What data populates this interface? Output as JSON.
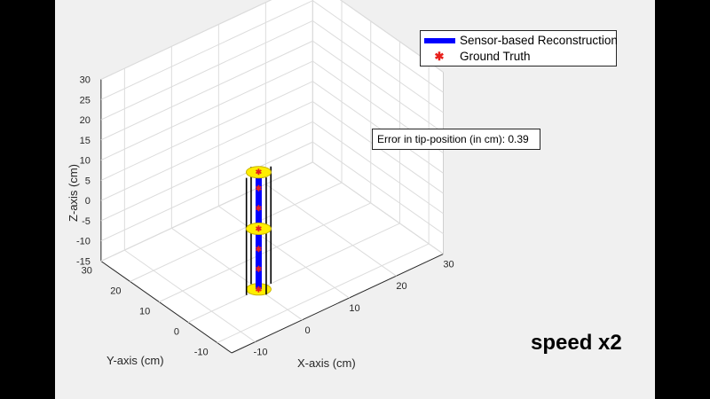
{
  "overlay": {
    "speed_label": "speed x2"
  },
  "legend": {
    "items": [
      {
        "label": "Sensor-based Reconstruction",
        "icon": "line-swatch",
        "color": "#0000ff"
      },
      {
        "label": "Ground Truth",
        "icon": "asterisk-marker",
        "color": "#e8201c"
      }
    ]
  },
  "annotation": {
    "text": "Error in tip-position (in cm): 0.39"
  },
  "chart_data": {
    "type": "line3d",
    "xlabel": "X-axis (cm)",
    "ylabel": "Y-axis (cm)",
    "zlabel": "Z-axis (cm)",
    "xlim": [
      -15,
      30
    ],
    "ylim": [
      -15,
      30
    ],
    "zlim": [
      -15,
      30
    ],
    "xticks": [
      "-10",
      "0",
      "10",
      "20",
      "30"
    ],
    "yticks": [
      "-10",
      "0",
      "10",
      "20",
      "30"
    ],
    "zticks": [
      "-15",
      "-10",
      "-5",
      "0",
      "5",
      "10",
      "15",
      "20",
      "25",
      "30"
    ],
    "grid": true,
    "legend_position": "top-right",
    "series": [
      {
        "name": "Sensor-based Reconstruction",
        "color": "#0000ff",
        "points": [
          [
            0,
            0,
            -15
          ],
          [
            0,
            0,
            -10
          ],
          [
            0,
            0,
            -5
          ],
          [
            0,
            0,
            0
          ],
          [
            0,
            0,
            5
          ],
          [
            0,
            0,
            10
          ],
          [
            0,
            0,
            14
          ]
        ]
      },
      {
        "name": "Ground Truth",
        "color": "#e8201c",
        "points": [
          [
            0,
            0,
            -15
          ],
          [
            0,
            0,
            -10
          ],
          [
            0,
            0,
            -5
          ],
          [
            0,
            0,
            0
          ],
          [
            0,
            0,
            5
          ],
          [
            0,
            0,
            10
          ],
          [
            0,
            0,
            14
          ]
        ]
      }
    ],
    "disk_colors": {
      "fill": "#ffee00",
      "edge": "#c8b400"
    },
    "disk_z": [
      -15,
      0,
      14
    ]
  }
}
